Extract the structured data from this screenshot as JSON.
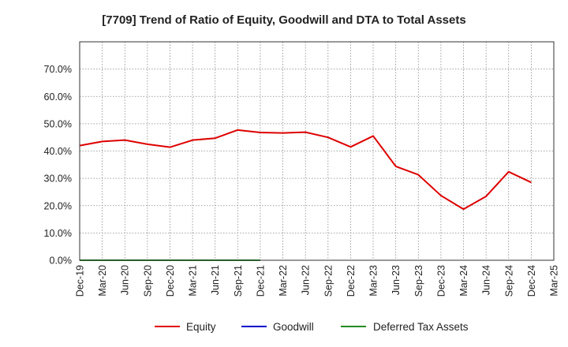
{
  "chart_data": {
    "type": "line",
    "title": "[7709]  Trend of Ratio of Equity, Goodwill and DTA to Total Assets",
    "xlabel": "",
    "ylabel": "",
    "ylim": [
      0,
      0.8
    ],
    "yticks": [
      0,
      0.1,
      0.2,
      0.3,
      0.4,
      0.5,
      0.6,
      0.7
    ],
    "ytick_labels": [
      "0.0%",
      "10.0%",
      "20.0%",
      "30.0%",
      "40.0%",
      "50.0%",
      "60.0%",
      "70.0%"
    ],
    "categories": [
      "Dec-19",
      "Mar-20",
      "Jun-20",
      "Sep-20",
      "Dec-20",
      "Mar-21",
      "Jun-21",
      "Sep-21",
      "Dec-21",
      "Mar-22",
      "Jun-22",
      "Sep-22",
      "Dec-22",
      "Mar-23",
      "Jun-23",
      "Sep-23",
      "Dec-23",
      "Mar-24",
      "Jun-24",
      "Sep-24",
      "Dec-24",
      "Mar-25"
    ],
    "grid": true,
    "legend_position": "bottom",
    "series": [
      {
        "name": "Equity",
        "color": "#dd0000",
        "values": [
          0.42,
          0.435,
          0.44,
          0.425,
          0.414,
          0.44,
          0.447,
          0.477,
          0.468,
          0.466,
          0.469,
          0.45,
          0.415,
          0.455,
          0.344,
          0.313,
          0.237,
          0.187,
          0.234,
          0.324,
          0.285,
          null
        ]
      },
      {
        "name": "Goodwill",
        "color": "#0000cc",
        "values": [
          0,
          0,
          0,
          0,
          0,
          0,
          0,
          0,
          0,
          null,
          null,
          null,
          null,
          null,
          null,
          null,
          null,
          null,
          null,
          null,
          null,
          null
        ]
      },
      {
        "name": "Deferred Tax Assets",
        "color": "#228b22",
        "values": [
          0,
          0,
          0,
          0,
          0,
          0,
          0,
          0,
          0,
          null,
          null,
          null,
          null,
          null,
          null,
          null,
          null,
          null,
          null,
          null,
          null,
          null
        ]
      }
    ]
  }
}
